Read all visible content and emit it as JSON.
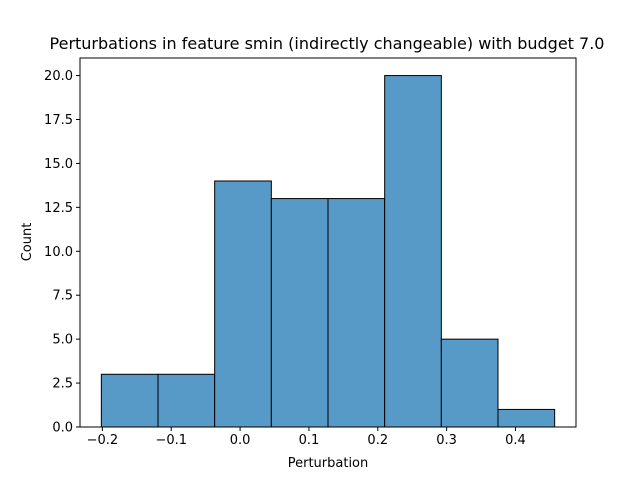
{
  "chart_data": {
    "type": "bar",
    "title": "Perturbations in feature smin (indirectly changeable) with budget 7.0",
    "xlabel": "Perturbation",
    "ylabel": "Count",
    "bin_edges": [
      -0.2015,
      -0.1192,
      -0.0369,
      0.0454,
      0.1277,
      0.21,
      0.2923,
      0.3746,
      0.4569
    ],
    "values": [
      3,
      3,
      14,
      13,
      13,
      20,
      5,
      1
    ],
    "xlim": [
      -0.2325,
      0.4879
    ],
    "ylim": [
      0,
      21
    ],
    "xticks": [
      -0.2,
      -0.1,
      0.0,
      0.1,
      0.2,
      0.3,
      0.4
    ],
    "xtick_labels": [
      "−0.2",
      "−0.1",
      "0.0",
      "0.1",
      "0.2",
      "0.3",
      "0.4"
    ],
    "yticks": [
      0,
      2.5,
      5,
      7.5,
      10,
      12.5,
      15,
      17.5,
      20
    ],
    "ytick_labels": [
      "0.0",
      "2.5",
      "5.0",
      "7.5",
      "10.0",
      "12.5",
      "15.0",
      "17.5",
      "20.0"
    ],
    "bar_color": "#5799c7",
    "edge_color": "#000000",
    "grid": false
  }
}
